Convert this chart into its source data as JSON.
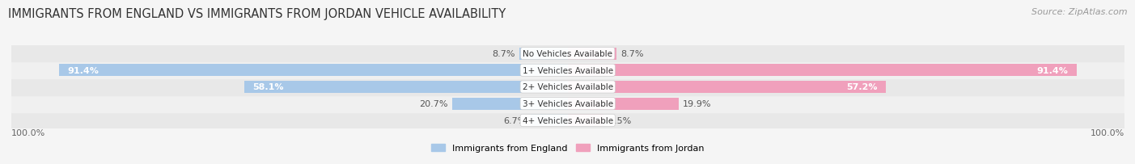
{
  "title": "IMMIGRANTS FROM ENGLAND VS IMMIGRANTS FROM JORDAN VEHICLE AVAILABILITY",
  "source": "Source: ZipAtlas.com",
  "categories": [
    "No Vehicles Available",
    "1+ Vehicles Available",
    "2+ Vehicles Available",
    "3+ Vehicles Available",
    "4+ Vehicles Available"
  ],
  "england_values": [
    8.7,
    91.4,
    58.1,
    20.7,
    6.7
  ],
  "jordan_values": [
    8.7,
    91.4,
    57.2,
    19.9,
    6.5
  ],
  "england_color_light": "#a8c8e8",
  "jordan_color_light": "#f0a0bc",
  "england_color_dark": "#7ab0d8",
  "jordan_color_dark": "#e87898",
  "label_england": "Immigrants from England",
  "label_jordan": "Immigrants from Jordan",
  "row_colors": [
    "#e8e8e8",
    "#f0f0f0",
    "#e8e8e8",
    "#f0f0f0",
    "#e8e8e8"
  ],
  "title_fontsize": 10.5,
  "source_fontsize": 8,
  "bar_label_fontsize": 8,
  "cat_label_fontsize": 7.5,
  "legend_fontsize": 8,
  "max_value": 100.0,
  "bg_color": "#f5f5f5"
}
